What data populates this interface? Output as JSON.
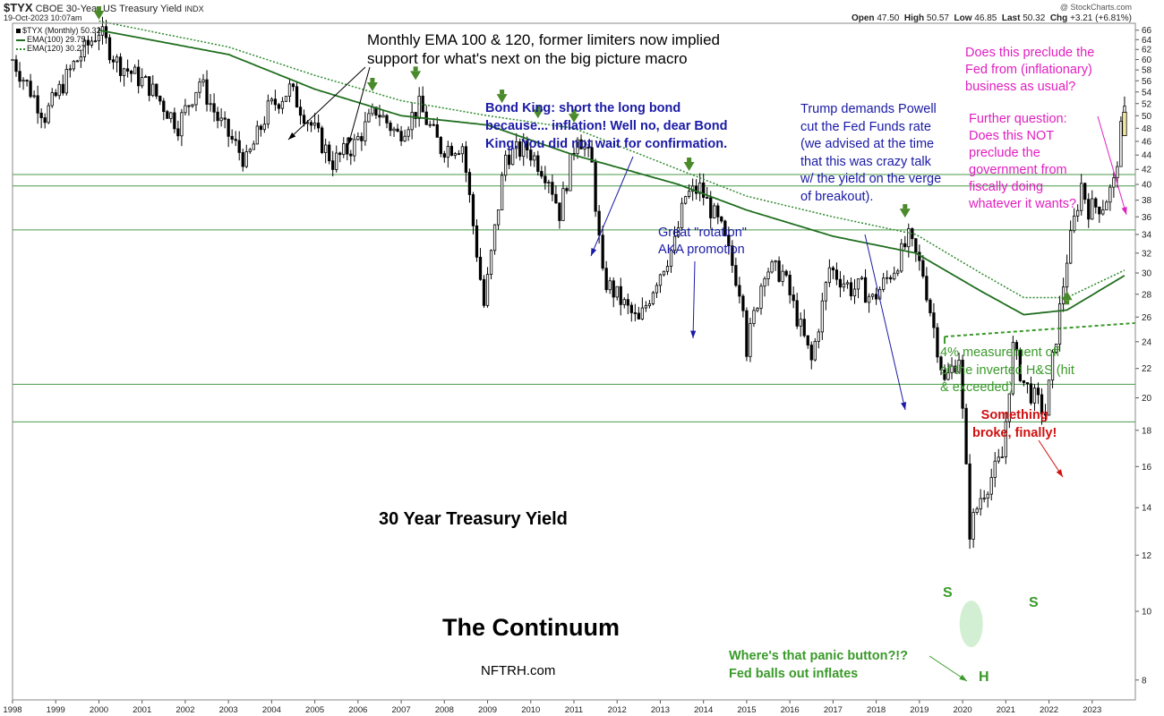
{
  "header": {
    "symbol": "$TYX",
    "description": "CBOE 30-Year US Treasury Yield",
    "exchange": "INDX",
    "datetime": "19-Oct-2023 10:07am",
    "credit": "@ StockCharts.com",
    "quote": {
      "open_label": "Open",
      "open": "47.50",
      "high_label": "High",
      "high": "50.57",
      "low_label": "Low",
      "low": "46.85",
      "last_label": "Last",
      "last": "50.32",
      "chg_label": "Chg",
      "chg": "+3.21 (+6.81%)"
    }
  },
  "legend": {
    "price": "$TYX (Monthly) 50.32",
    "ema100": "EMA(100) 29.75",
    "ema120": "EMA(120) 30.27"
  },
  "annotations": {
    "ema_note": "Monthly EMA 100 & 120, former limiters now implied\nsupport for what's next on the big picture macro",
    "bond_king": "Bond King: short the long bond\nbecause... inflation! Well no, dear Bond\nKing. You did not wait for confirmation.",
    "trump": "Trump demands Powell\ncut the Fed Funds rate\n(we advised at the time\nthat this was crazy talk\nw/ the yield on the verge\nof breakout).",
    "question1": "Does this preclude the\nFed from (inflationary)\nbusiness as usual?",
    "question2": "Further question:\nDoes this NOT\npreclude the\ngovernment from\nfiscally doing\nwhatever it wants?",
    "rotation": "Great \"rotation\"\nAKA promotion",
    "measurement": "4% measurement off\nof the inverted H&S (hit\n& exceeded)",
    "something_broke": "Something\nbroke, finally!",
    "title": "30 Year Treasury Yield",
    "continuum": "The Continuum",
    "nftrh": "NFTRH.com",
    "panic": "Where's that panic button?!?\nFed balls out inflates",
    "s_left": "S",
    "s_right": "S",
    "h": "H"
  },
  "colors": {
    "candle_up": "#ffffff",
    "candle_down": "#000000",
    "ema100": "#1f6e1f",
    "ema120": "#2f8a2f",
    "hline": "#4a9a4a",
    "arrow_green": "#4a8a2a",
    "blue_text": "#1a1aa6",
    "magenta_text": "#e020c0",
    "green_text": "#3a9a2a",
    "red_text": "#d01010"
  },
  "chart_data": {
    "type": "candlestick",
    "title": "30 Year Treasury Yield",
    "interval": "monthly",
    "x_ticks": [
      "1998",
      "1999",
      "2000",
      "2001",
      "2002",
      "2003",
      "2004",
      "2005",
      "2006",
      "2007",
      "2008",
      "2009",
      "2010",
      "2011",
      "2012",
      "2013",
      "2014",
      "2015",
      "2016",
      "2017",
      "2018",
      "2019",
      "2020",
      "2021",
      "2022",
      "2023"
    ],
    "y_ticks": [
      8,
      10,
      12,
      14,
      16,
      18,
      20,
      22,
      24,
      26,
      28,
      30,
      32,
      34,
      36,
      38,
      40,
      42,
      44,
      46,
      48,
      50,
      52,
      54,
      56,
      58,
      60,
      62,
      64,
      66
    ],
    "ylim": [
      7.5,
      67.5
    ],
    "y_scale": "log",
    "horizontal_levels": [
      41.3,
      39.8,
      34.5,
      20.9,
      18.5
    ],
    "neckline": {
      "start": [
        "2019-08",
        24.4
      ],
      "end": [
        "2023-12",
        25.5
      ]
    },
    "series": [
      {
        "name": "$TYX (Monthly)",
        "kind": "ohlc",
        "last": 50.32,
        "anchors": [
          [
            "1998-01",
            60.0
          ],
          [
            "1998-10",
            50.0
          ],
          [
            "1999-06",
            59.0
          ],
          [
            "2000-01",
            66.0
          ],
          [
            "2000-06",
            59.5
          ],
          [
            "2001-03",
            55.0
          ],
          [
            "2001-11",
            48.5
          ],
          [
            "2002-05",
            56.0
          ],
          [
            "2002-10",
            49.5
          ],
          [
            "2003-06",
            43.0
          ],
          [
            "2003-12",
            51.0
          ],
          [
            "2004-06",
            54.5
          ],
          [
            "2004-12",
            48.5
          ],
          [
            "2005-06",
            43.0
          ],
          [
            "2005-12",
            45.5
          ],
          [
            "2006-06",
            51.0
          ],
          [
            "2006-12",
            47.0
          ],
          [
            "2007-06",
            51.5
          ],
          [
            "2007-12",
            45.0
          ],
          [
            "2008-06",
            45.5
          ],
          [
            "2008-12",
            27.0
          ],
          [
            "2009-06",
            44.0
          ],
          [
            "2009-12",
            45.0
          ],
          [
            "2010-06",
            41.0
          ],
          [
            "2010-09",
            36.5
          ],
          [
            "2011-02",
            47.5
          ],
          [
            "2011-06",
            42.5
          ],
          [
            "2011-09",
            29.5
          ],
          [
            "2012-07",
            25.5
          ],
          [
            "2012-12",
            29.5
          ],
          [
            "2013-05",
            33.0
          ],
          [
            "2013-08",
            38.5
          ],
          [
            "2013-12",
            39.5
          ],
          [
            "2014-06",
            34.5
          ],
          [
            "2014-12",
            27.5
          ],
          [
            "2015-01",
            23.5
          ],
          [
            "2015-06",
            30.5
          ],
          [
            "2015-11",
            30.0
          ],
          [
            "2016-07",
            22.5
          ],
          [
            "2016-12",
            30.5
          ],
          [
            "2017-06",
            28.5
          ],
          [
            "2017-09",
            28.6
          ],
          [
            "2017-12",
            27.5
          ],
          [
            "2018-06",
            30.5
          ],
          [
            "2018-10",
            33.5
          ],
          [
            "2019-02",
            30.0
          ],
          [
            "2019-08",
            21.0
          ],
          [
            "2019-12",
            23.0
          ],
          [
            "2020-03",
            13.0
          ],
          [
            "2020-06",
            14.5
          ],
          [
            "2020-12",
            16.5
          ],
          [
            "2021-03",
            23.5
          ],
          [
            "2021-06",
            21.0
          ],
          [
            "2021-12",
            19.0
          ],
          [
            "2022-03",
            24.5
          ],
          [
            "2022-06",
            31.5
          ],
          [
            "2022-10",
            40.0
          ],
          [
            "2022-12",
            37.0
          ],
          [
            "2023-04",
            37.5
          ],
          [
            "2023-07",
            40.0
          ],
          [
            "2023-09",
            47.5
          ],
          [
            "2023-10",
            50.32
          ]
        ]
      },
      {
        "name": "EMA(100)",
        "kind": "line",
        "last": 29.75,
        "anchors": [
          [
            "2000-01",
            66.0
          ],
          [
            "2003-01",
            61.0
          ],
          [
            "2005-01",
            54.5
          ],
          [
            "2007-01",
            50.0
          ],
          [
            "2009-01",
            48.5
          ],
          [
            "2011-01",
            44.0
          ],
          [
            "2013-06",
            40.0
          ],
          [
            "2015-01",
            36.8
          ],
          [
            "2017-01",
            33.8
          ],
          [
            "2018-12",
            32.0
          ],
          [
            "2020-06",
            28.3
          ],
          [
            "2021-06",
            26.2
          ],
          [
            "2022-06",
            26.6
          ],
          [
            "2023-10",
            29.75
          ]
        ]
      },
      {
        "name": "EMA(120)",
        "kind": "line",
        "last": 30.27,
        "anchors": [
          [
            "2000-01",
            68.0
          ],
          [
            "2003-01",
            62.5
          ],
          [
            "2005-01",
            57.0
          ],
          [
            "2007-01",
            52.5
          ],
          [
            "2009-01",
            50.0
          ],
          [
            "2011-01",
            48.0
          ],
          [
            "2013-06",
            42.0
          ],
          [
            "2015-01",
            38.5
          ],
          [
            "2017-01",
            36.0
          ],
          [
            "2018-12",
            34.0
          ],
          [
            "2020-06",
            30.0
          ],
          [
            "2021-06",
            27.7
          ],
          [
            "2022-06",
            27.7
          ],
          [
            "2023-10",
            30.27
          ]
        ]
      }
    ],
    "markers": {
      "green_down_arrows": [
        [
          "2000-01",
          67.5
        ],
        [
          "2006-05",
          53.5
        ],
        [
          "2007-05",
          55.5
        ],
        [
          "2009-05",
          51.5
        ],
        [
          "2010-03",
          49.0
        ],
        [
          "2011-01",
          48.3
        ],
        [
          "2013-09",
          41.3
        ],
        [
          "2018-09",
          35.5
        ]
      ],
      "green_up_arrow": [
        "2022-06",
        27.0
      ]
    }
  }
}
